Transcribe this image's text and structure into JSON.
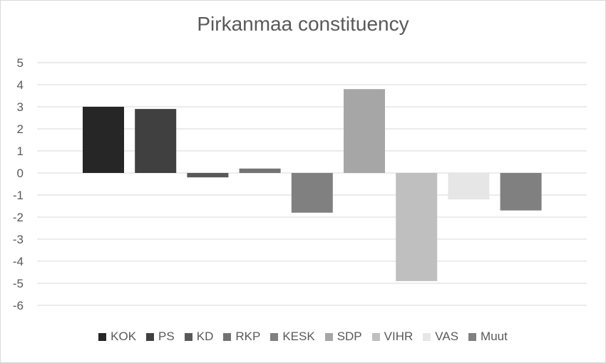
{
  "chart_data": {
    "type": "bar",
    "title": "Pirkanmaa constituency",
    "xlabel": "",
    "ylabel": "",
    "ylim": [
      -6,
      5
    ],
    "yticks": [
      5,
      4,
      3,
      2,
      1,
      0,
      -1,
      -2,
      -3,
      -4,
      -5,
      -6
    ],
    "grid": true,
    "legend_position": "bottom",
    "series": [
      {
        "name": "KOK",
        "value": 3.0,
        "color": "#262626"
      },
      {
        "name": "PS",
        "value": 2.9,
        "color": "#404040"
      },
      {
        "name": "KD",
        "value": -0.2,
        "color": "#595959"
      },
      {
        "name": "RKP",
        "value": 0.2,
        "color": "#737373"
      },
      {
        "name": "KESK",
        "value": -1.8,
        "color": "#808080"
      },
      {
        "name": "SDP",
        "value": 3.8,
        "color": "#a6a6a6"
      },
      {
        "name": "VIHR",
        "value": -4.9,
        "color": "#bfbfbf"
      },
      {
        "name": "VAS",
        "value": -1.2,
        "color": "#e6e6e6"
      },
      {
        "name": "Muut",
        "value": -1.7,
        "color": "#808080"
      }
    ]
  }
}
